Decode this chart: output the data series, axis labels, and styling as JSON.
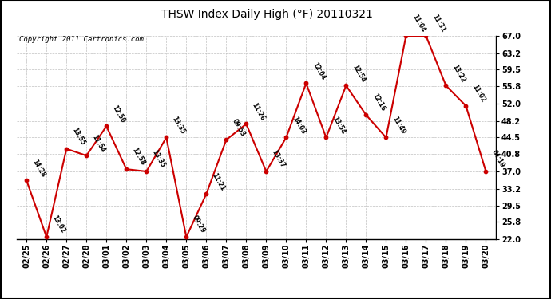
{
  "title": "THSW Index Daily High (°F) 20110321",
  "copyright": "Copyright 2011 Cartronics.com",
  "dates": [
    "02/25",
    "02/26",
    "02/27",
    "02/28",
    "03/01",
    "03/02",
    "03/03",
    "03/04",
    "03/05",
    "03/06",
    "03/07",
    "03/08",
    "03/09",
    "03/10",
    "03/11",
    "03/12",
    "03/13",
    "03/14",
    "03/15",
    "03/16",
    "03/17",
    "03/18",
    "03/19",
    "03/20"
  ],
  "values": [
    35.0,
    22.5,
    42.0,
    40.5,
    47.0,
    37.5,
    37.0,
    44.5,
    22.5,
    32.0,
    44.0,
    47.5,
    37.0,
    44.5,
    56.5,
    44.5,
    56.0,
    49.5,
    44.5,
    67.0,
    67.0,
    56.0,
    51.5,
    37.0
  ],
  "time_labels": [
    "14:28",
    "13:02",
    "13:55",
    "11:54",
    "12:50",
    "12:58",
    "13:35",
    "13:35",
    "09:29",
    "11:21",
    "09:53",
    "11:26",
    "13:37",
    "14:03",
    "12:04",
    "13:54",
    "12:54",
    "12:16",
    "11:49",
    "11:04",
    "11:31",
    "13:22",
    "11:02",
    "04:19"
  ],
  "yticks": [
    22.0,
    25.8,
    29.5,
    33.2,
    37.0,
    40.8,
    44.5,
    48.2,
    52.0,
    55.8,
    59.5,
    63.2,
    67.0
  ],
  "ylim": [
    22.0,
    67.0
  ],
  "line_color": "#cc0000",
  "marker_color": "#cc0000",
  "bg_color": "#ffffff",
  "grid_color": "#c0c0c0",
  "title_fontsize": 10,
  "tick_fontsize": 7,
  "copyright_fontsize": 6.5,
  "label_fontsize": 6.5
}
